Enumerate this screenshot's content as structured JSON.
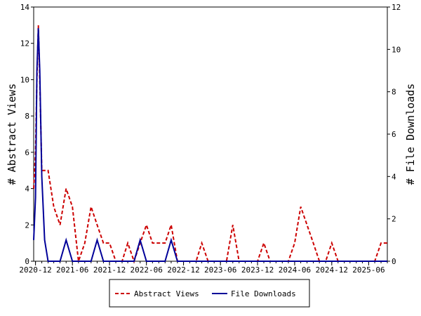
{
  "chart_data": {
    "type": "line",
    "x_dates": [
      "2020-11-22",
      "2020-12-01",
      "2020-12-08",
      "2020-12-15",
      "2020-12-22",
      "2021-01-01",
      "2021-01-15",
      "2021-02-01",
      "2021-03-01",
      "2021-04-01",
      "2021-05-01",
      "2021-06-01",
      "2021-07-01",
      "2021-08-01",
      "2021-09-01",
      "2021-10-01",
      "2021-11-01",
      "2021-12-01",
      "2022-01-01",
      "2022-02-01",
      "2022-03-01",
      "2022-04-01",
      "2022-05-01",
      "2022-06-01",
      "2022-07-01",
      "2022-08-01",
      "2022-09-01",
      "2022-10-01",
      "2022-11-01",
      "2022-12-01",
      "2023-01-01",
      "2023-02-01",
      "2023-03-01",
      "2023-04-01",
      "2023-05-01",
      "2023-06-01",
      "2023-07-01",
      "2023-08-01",
      "2023-09-01",
      "2023-10-01",
      "2023-11-01",
      "2023-12-01",
      "2024-01-01",
      "2024-02-01",
      "2024-03-01",
      "2024-04-01",
      "2024-05-01",
      "2024-06-01",
      "2024-07-01",
      "2024-08-01",
      "2024-09-01",
      "2024-10-01",
      "2024-11-01",
      "2024-12-01",
      "2025-01-01",
      "2025-02-01",
      "2025-03-01",
      "2025-04-01",
      "2025-05-01",
      "2025-06-01",
      "2025-07-01",
      "2025-08-01",
      "2025-09-01"
    ],
    "series": [
      {
        "name": "Abstract Views",
        "axis": "left",
        "color": "#cc0000",
        "dash": "dashed",
        "values": [
          4,
          6,
          10,
          13,
          10,
          5,
          5,
          5,
          3,
          2,
          4,
          3,
          0,
          1,
          3,
          2,
          1,
          1,
          0,
          0,
          1,
          0,
          1,
          2,
          1,
          1,
          1,
          2,
          0,
          0,
          0,
          0,
          1,
          0,
          0,
          0,
          0,
          2,
          0,
          0,
          0,
          0,
          1,
          0,
          0,
          0,
          0,
          1,
          3,
          2,
          1,
          0,
          0,
          1,
          0,
          0,
          0,
          0,
          0,
          0,
          0,
          1,
          1
        ]
      },
      {
        "name": "File Downloads",
        "axis": "right",
        "color": "#000099",
        "dash": "solid",
        "values": [
          1,
          3,
          9,
          11,
          9,
          4,
          1,
          0,
          0,
          0,
          1,
          0,
          0,
          0,
          0,
          1,
          0,
          0,
          0,
          0,
          0,
          0,
          1,
          0,
          0,
          0,
          0,
          1,
          0,
          0,
          0,
          0,
          0,
          0,
          0,
          0,
          0,
          0,
          0,
          0,
          0,
          0,
          0,
          0,
          0,
          0,
          0,
          0,
          0,
          0,
          0,
          0,
          0,
          0,
          0,
          0,
          0,
          0,
          0,
          0,
          0,
          0,
          0
        ]
      }
    ],
    "x_ticks": [
      {
        "date": "2020-12-01",
        "label": "2020-12"
      },
      {
        "date": "2021-06-01",
        "label": "2021-06"
      },
      {
        "date": "2021-12-01",
        "label": "2021-12"
      },
      {
        "date": "2022-06-01",
        "label": "2022-06"
      },
      {
        "date": "2022-12-01",
        "label": "2022-12"
      },
      {
        "date": "2023-06-01",
        "label": "2023-06"
      },
      {
        "date": "2023-12-01",
        "label": "2023-12"
      },
      {
        "date": "2024-06-01",
        "label": "2024-06"
      },
      {
        "date": "2024-12-01",
        "label": "2024-12"
      },
      {
        "date": "2025-06-01",
        "label": "2025-06"
      }
    ],
    "xlim": [
      "2020-11-22",
      "2025-09-01"
    ],
    "left_axis": {
      "label": "# Abstract Views",
      "ylim": [
        0,
        14
      ],
      "ticks": [
        0,
        2,
        4,
        6,
        8,
        10,
        12,
        14
      ]
    },
    "right_axis": {
      "label": "# File Downloads",
      "ylim": [
        0,
        12
      ],
      "ticks": [
        0,
        2,
        4,
        6,
        8,
        10,
        12
      ]
    },
    "grid": false,
    "legend_position": "bottom-center"
  }
}
